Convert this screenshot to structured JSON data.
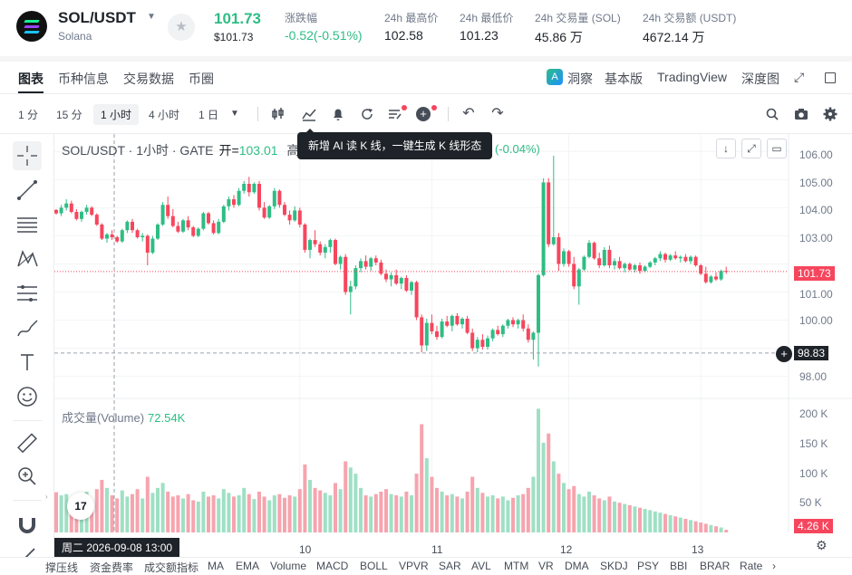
{
  "header": {
    "symbol": "SOL/USDT",
    "subtitle": "Solana",
    "last_price": "101.73",
    "last_price_usd": "$101.73",
    "stats": [
      {
        "label": "涨跌幅",
        "value": "-0.52(-0.51%)",
        "color": "#2ebd85"
      },
      {
        "label": "24h 最高价",
        "value": "102.58"
      },
      {
        "label": "24h 最低价",
        "value": "101.23"
      },
      {
        "label": "24h 交易量 (SOL)",
        "value": "45.86 万"
      },
      {
        "label": "24h 交易额 (USDT)",
        "value": "4672.14 万"
      }
    ]
  },
  "tabs": {
    "left": [
      "图表",
      "币种信息",
      "交易数据",
      "币圈"
    ],
    "right": [
      "洞察",
      "基本版",
      "TradingView",
      "深度图"
    ]
  },
  "toolbar": {
    "intervals": [
      "1 分",
      "15 分",
      "1 小时",
      "4 小时",
      "1 日"
    ],
    "active_interval": "1 小时"
  },
  "chart": {
    "legend_title": "SOL/USDT · 1小时 · GATE",
    "open_label": "开=",
    "open_value": "103.01",
    "hidden_prefix": "高",
    "tooltip": "新增 AI 读 K 线，一键生成 K 线形态",
    "change": "(-0.04%)",
    "volume_label": "成交量(Volume)",
    "volume_value": "72.54K",
    "price_axis": [
      "106.00",
      "105.00",
      "104.00",
      "103.00",
      "102.00",
      "101.00",
      "100.00",
      "99.00",
      "98.00"
    ],
    "volume_axis": [
      "200 K",
      "150 K",
      "100 K",
      "50 K"
    ],
    "current_price_tag": "101.73",
    "crosshair_price_tag": "98.83",
    "current_volume_tag": "4.26 K",
    "time_labels": [
      "10",
      "11",
      "12",
      "13"
    ],
    "crosshair_time": "周二 2026-09-08   13:00",
    "tv_logo": "17"
  },
  "indicators": [
    "撑压线",
    "资金费率",
    "成交额指标",
    "MA",
    "EMA",
    "Volume",
    "MACD",
    "BOLL",
    "VPVR",
    "SAR",
    "AVL",
    "MTM",
    "VR",
    "DMA",
    "SKDJ",
    "PSY",
    "BBI",
    "BRAR",
    "Rate"
  ],
  "colors": {
    "up": "#2ebd85",
    "down": "#f6465d",
    "vol_up": "#9fe0c4",
    "vol_down": "#f6a4ae"
  },
  "chart_data": {
    "type": "candlestick",
    "title": "SOL/USDT · 1小时 · GATE",
    "ylim": [
      97.6,
      106.3
    ],
    "volume_ylim": [
      0,
      205000
    ],
    "x_ticks": [
      {
        "label": "10",
        "index": 48
      },
      {
        "label": "11",
        "index": 74
      },
      {
        "label": "12",
        "index": 101
      },
      {
        "label": "13",
        "index": 127
      }
    ],
    "candles": [
      [
        103.92,
        103.95,
        103.75,
        103.8,
        65000
      ],
      [
        103.8,
        104.1,
        103.7,
        104.0,
        60000
      ],
      [
        104.0,
        104.3,
        103.9,
        104.15,
        62000
      ],
      [
        104.15,
        104.25,
        103.8,
        103.85,
        55000
      ],
      [
        103.85,
        103.95,
        103.55,
        103.6,
        58000
      ],
      [
        103.6,
        103.9,
        103.5,
        103.85,
        52000
      ],
      [
        103.85,
        104.1,
        103.75,
        104.0,
        66000
      ],
      [
        104.0,
        104.05,
        103.7,
        103.75,
        50000
      ],
      [
        103.75,
        103.8,
        103.35,
        103.4,
        70000
      ],
      [
        103.4,
        103.45,
        102.85,
        102.9,
        85000
      ],
      [
        102.9,
        103.1,
        102.75,
        103.05,
        72000
      ],
      [
        103.05,
        103.2,
        102.85,
        102.95,
        60000
      ],
      [
        102.95,
        103.0,
        102.75,
        102.8,
        55000
      ],
      [
        102.8,
        103.25,
        102.75,
        103.2,
        68000
      ],
      [
        103.2,
        103.55,
        103.1,
        103.5,
        58000
      ],
      [
        103.5,
        103.6,
        103.1,
        103.2,
        62000
      ],
      [
        103.2,
        103.25,
        102.9,
        102.95,
        70000
      ],
      [
        102.95,
        103.1,
        102.8,
        103.0,
        55000
      ],
      [
        103.0,
        103.05,
        101.95,
        102.4,
        90000
      ],
      [
        102.4,
        103.0,
        102.35,
        102.9,
        64000
      ],
      [
        102.9,
        103.45,
        102.85,
        103.4,
        72000
      ],
      [
        103.4,
        104.2,
        103.35,
        104.1,
        80000
      ],
      [
        104.1,
        104.4,
        103.6,
        103.7,
        66000
      ],
      [
        103.7,
        103.95,
        103.3,
        103.35,
        58000
      ],
      [
        103.35,
        103.5,
        103.1,
        103.15,
        60000
      ],
      [
        103.15,
        103.6,
        103.1,
        103.55,
        55000
      ],
      [
        103.55,
        103.7,
        103.2,
        103.3,
        62000
      ],
      [
        103.3,
        103.35,
        102.95,
        103.0,
        52000
      ],
      [
        103.0,
        103.3,
        102.95,
        103.25,
        50000
      ],
      [
        103.25,
        103.85,
        103.2,
        103.8,
        66000
      ],
      [
        103.8,
        103.85,
        103.4,
        103.45,
        58000
      ],
      [
        103.45,
        103.55,
        103.05,
        103.1,
        60000
      ],
      [
        103.1,
        103.6,
        103.05,
        103.5,
        55000
      ],
      [
        103.5,
        104.1,
        103.45,
        104.05,
        70000
      ],
      [
        104.05,
        104.4,
        103.9,
        104.3,
        64000
      ],
      [
        104.3,
        104.45,
        104.0,
        104.1,
        58000
      ],
      [
        104.1,
        104.7,
        104.05,
        104.6,
        60000
      ],
      [
        104.6,
        104.95,
        104.5,
        104.85,
        72000
      ],
      [
        104.85,
        105.1,
        104.4,
        104.55,
        62000
      ],
      [
        104.55,
        104.9,
        104.5,
        104.85,
        54000
      ],
      [
        104.85,
        104.95,
        103.9,
        104.0,
        66000
      ],
      [
        104.0,
        104.2,
        103.6,
        103.65,
        58000
      ],
      [
        103.65,
        104.1,
        103.6,
        104.05,
        52000
      ],
      [
        104.05,
        104.7,
        103.95,
        104.6,
        60000
      ],
      [
        104.6,
        104.65,
        104.0,
        104.1,
        62000
      ],
      [
        104.1,
        104.2,
        103.7,
        103.75,
        56000
      ],
      [
        103.75,
        103.9,
        103.4,
        103.55,
        60000
      ],
      [
        103.55,
        104.05,
        103.5,
        103.9,
        58000
      ],
      [
        103.9,
        104.0,
        103.3,
        103.4,
        70000
      ],
      [
        103.4,
        103.45,
        102.4,
        102.5,
        110000
      ],
      [
        102.5,
        102.9,
        102.2,
        102.85,
        85000
      ],
      [
        102.85,
        103.2,
        102.6,
        102.7,
        72000
      ],
      [
        102.7,
        102.8,
        102.3,
        102.4,
        68000
      ],
      [
        102.4,
        102.7,
        102.2,
        102.6,
        64000
      ],
      [
        102.6,
        102.9,
        102.4,
        102.85,
        60000
      ],
      [
        102.85,
        102.9,
        101.95,
        102.0,
        80000
      ],
      [
        102.0,
        102.3,
        101.8,
        102.25,
        70000
      ],
      [
        102.25,
        102.35,
        100.9,
        101.0,
        115000
      ],
      [
        101.0,
        101.4,
        100.2,
        101.2,
        105000
      ],
      [
        101.2,
        101.95,
        101.1,
        101.85,
        95000
      ],
      [
        101.85,
        102.2,
        101.7,
        102.1,
        72000
      ],
      [
        102.1,
        102.3,
        101.8,
        101.9,
        60000
      ],
      [
        101.9,
        102.25,
        101.75,
        102.2,
        58000
      ],
      [
        102.2,
        102.3,
        101.95,
        102.05,
        62000
      ],
      [
        102.05,
        102.15,
        101.6,
        101.65,
        66000
      ],
      [
        101.65,
        101.8,
        101.35,
        101.45,
        70000
      ],
      [
        101.45,
        101.7,
        101.2,
        101.6,
        62000
      ],
      [
        101.6,
        101.8,
        101.25,
        101.3,
        60000
      ],
      [
        101.3,
        101.55,
        101.1,
        101.5,
        58000
      ],
      [
        101.5,
        101.6,
        101.0,
        101.05,
        66000
      ],
      [
        101.05,
        101.4,
        100.9,
        101.35,
        60000
      ],
      [
        101.35,
        101.4,
        100.0,
        100.1,
        95000
      ],
      [
        100.1,
        100.2,
        98.85,
        99.1,
        175000
      ],
      [
        99.1,
        100.05,
        98.9,
        99.9,
        120000
      ],
      [
        99.9,
        100.2,
        99.5,
        99.6,
        90000
      ],
      [
        99.6,
        99.8,
        99.3,
        99.4,
        72000
      ],
      [
        99.4,
        100.05,
        99.35,
        99.95,
        66000
      ],
      [
        99.95,
        100.15,
        99.75,
        99.8,
        60000
      ],
      [
        99.8,
        100.2,
        99.6,
        100.15,
        62000
      ],
      [
        100.15,
        100.25,
        99.8,
        99.85,
        58000
      ],
      [
        99.85,
        100.1,
        99.7,
        100.05,
        55000
      ],
      [
        100.05,
        100.15,
        99.5,
        99.55,
        66000
      ],
      [
        99.55,
        99.7,
        98.9,
        99.0,
        90000
      ],
      [
        99.0,
        99.4,
        98.85,
        99.3,
        72000
      ],
      [
        99.3,
        99.5,
        98.95,
        99.05,
        64000
      ],
      [
        99.05,
        99.45,
        98.95,
        99.35,
        58000
      ],
      [
        99.35,
        99.7,
        99.25,
        99.65,
        60000
      ],
      [
        99.65,
        99.8,
        99.45,
        99.5,
        55000
      ],
      [
        99.5,
        99.85,
        99.4,
        99.8,
        58000
      ],
      [
        99.8,
        100.05,
        99.7,
        100.0,
        52000
      ],
      [
        100.0,
        100.1,
        99.75,
        99.85,
        56000
      ],
      [
        99.85,
        100.05,
        99.7,
        100.0,
        60000
      ],
      [
        100.0,
        100.2,
        99.6,
        99.7,
        62000
      ],
      [
        99.7,
        99.85,
        99.2,
        99.3,
        72000
      ],
      [
        99.3,
        99.6,
        98.6,
        99.55,
        90000
      ],
      [
        99.55,
        101.65,
        98.35,
        101.6,
        200000
      ],
      [
        101.6,
        105.05,
        101.55,
        104.9,
        145000
      ],
      [
        104.9,
        105.05,
        102.6,
        102.7,
        160000
      ],
      [
        102.7,
        105.85,
        102.65,
        102.95,
        115000
      ],
      [
        102.95,
        103.1,
        101.75,
        102.0,
        95000
      ],
      [
        102.0,
        102.55,
        101.9,
        102.45,
        80000
      ],
      [
        102.45,
        102.5,
        101.9,
        102.0,
        70000
      ],
      [
        102.0,
        102.25,
        101.1,
        101.2,
        75000
      ],
      [
        101.2,
        101.85,
        100.55,
        101.8,
        62000
      ],
      [
        101.8,
        102.3,
        101.75,
        102.25,
        58000
      ],
      [
        102.25,
        102.85,
        102.2,
        102.75,
        66000
      ],
      [
        102.75,
        102.8,
        102.15,
        102.2,
        60000
      ],
      [
        102.2,
        102.4,
        101.85,
        101.95,
        55000
      ],
      [
        101.95,
        102.6,
        101.9,
        102.5,
        52000
      ],
      [
        102.5,
        102.65,
        101.85,
        101.95,
        58000
      ],
      [
        101.95,
        102.2,
        101.8,
        102.1,
        50000
      ],
      [
        102.1,
        102.25,
        101.8,
        101.85,
        48000
      ],
      [
        101.85,
        102.05,
        101.7,
        102.0,
        46000
      ],
      [
        102.0,
        102.05,
        101.75,
        101.8,
        44000
      ],
      [
        101.8,
        102.0,
        101.7,
        101.95,
        42000
      ],
      [
        101.95,
        102.05,
        101.65,
        101.75,
        40000
      ],
      [
        101.75,
        101.95,
        101.7,
        101.9,
        38000
      ],
      [
        101.9,
        102.1,
        101.85,
        102.05,
        36000
      ],
      [
        102.05,
        102.25,
        101.95,
        102.2,
        34000
      ],
      [
        102.2,
        102.45,
        102.1,
        102.35,
        32000
      ],
      [
        102.35,
        102.4,
        102.05,
        102.15,
        30000
      ],
      [
        102.15,
        102.35,
        102.1,
        102.3,
        28000
      ],
      [
        102.3,
        102.45,
        102.15,
        102.2,
        26000
      ],
      [
        102.2,
        102.3,
        102.05,
        102.25,
        24000
      ],
      [
        102.25,
        102.35,
        102.05,
        102.1,
        22000
      ],
      [
        102.1,
        102.3,
        102.0,
        102.25,
        20000
      ],
      [
        102.25,
        102.3,
        101.9,
        101.95,
        18000
      ],
      [
        101.95,
        102.0,
        101.6,
        101.65,
        16000
      ],
      [
        101.65,
        101.9,
        101.3,
        101.35,
        14000
      ],
      [
        101.35,
        101.6,
        101.3,
        101.55,
        12000
      ],
      [
        101.55,
        101.7,
        101.4,
        101.45,
        10000
      ],
      [
        101.45,
        101.8,
        101.4,
        101.75,
        8000
      ],
      [
        101.75,
        101.9,
        101.65,
        101.73,
        4260
      ]
    ]
  }
}
